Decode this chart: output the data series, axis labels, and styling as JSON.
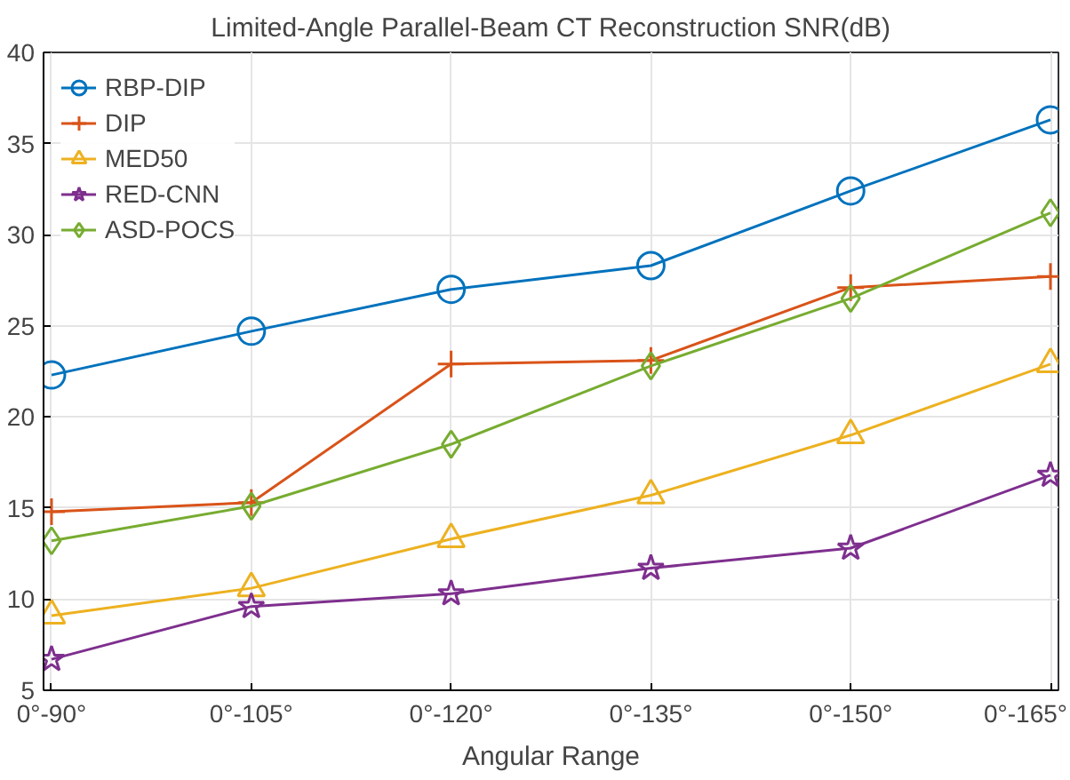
{
  "chart_data": {
    "type": "line",
    "title": "Limited-Angle Parallel-Beam CT Reconstruction SNR(dB)",
    "xlabel": "Angular Range",
    "categories": [
      "0°-90°",
      "0°-105°",
      "0°-120°",
      "0°-135°",
      "0°-150°",
      "0°-165°"
    ],
    "ylim": [
      5,
      40
    ],
    "yticks": [
      5,
      10,
      15,
      20,
      25,
      30,
      35,
      40
    ],
    "grid": true,
    "legend": "top left",
    "line_style": "solid",
    "series": [
      {
        "name": "RBP-DIP",
        "color": "#0072bd",
        "marker": "circle",
        "values": [
          22.3,
          24.7,
          27.0,
          28.3,
          32.4,
          36.3
        ]
      },
      {
        "name": "DIP",
        "color": "#d95319",
        "marker": "cross",
        "values": [
          14.8,
          15.3,
          22.9,
          23.1,
          27.1,
          27.7
        ]
      },
      {
        "name": "MED50",
        "color": "#edb120",
        "marker": "triangle",
        "values": [
          9.1,
          10.6,
          13.3,
          15.7,
          19.0,
          22.9
        ]
      },
      {
        "name": "RED-CNN",
        "color": "#7e2f8e",
        "marker": "star",
        "values": [
          6.7,
          9.6,
          10.3,
          11.7,
          12.8,
          16.8
        ]
      },
      {
        "name": "ASD-POCS",
        "color": "#77ac30",
        "marker": "diamond",
        "values": [
          13.2,
          15.1,
          18.5,
          22.8,
          26.5,
          31.2
        ]
      }
    ]
  }
}
